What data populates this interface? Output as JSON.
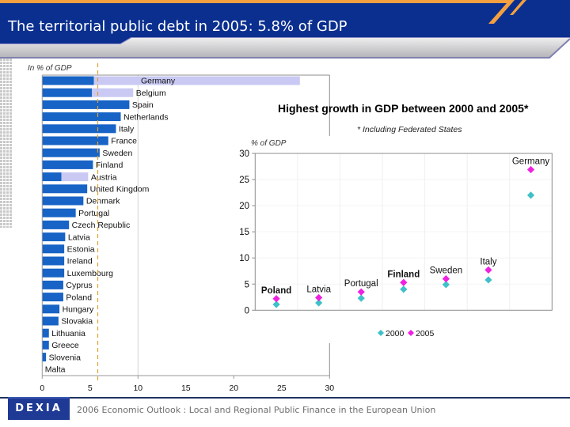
{
  "header": {
    "title": "The territorial public debt in 2005: 5.8% of GDP"
  },
  "colors": {
    "header_navy": "#0a2f8f",
    "header_orange": "#f4a040",
    "logo_blue": "#1e3a94"
  },
  "chart_data": [
    {
      "type": "bar",
      "orientation": "horizontal",
      "stacked": true,
      "unit_label": "In % of GDP",
      "categories": [
        "Germany",
        "Belgium",
        "Spain",
        "Netherlands",
        "Italy",
        "France",
        "Sweden",
        "Finland",
        "Austria",
        "United Kingdom",
        "Denmark",
        "Portugal",
        "Czech Republic",
        "Latvia",
        "Estonia",
        "Ireland",
        "Luxembourg",
        "Cyprus",
        "Poland",
        "Hungary",
        "Slovakia",
        "Lithuania",
        "Greece",
        "Slovenia",
        "Malta"
      ],
      "series": [
        {
          "name": "Territorial public debt",
          "color": "#1763c6",
          "values": [
            5.4,
            5.2,
            9.1,
            8.2,
            7.7,
            6.9,
            6.0,
            5.3,
            2.0,
            4.7,
            4.3,
            3.5,
            2.8,
            2.4,
            2.3,
            2.3,
            2.3,
            2.2,
            2.2,
            1.8,
            1.7,
            0.7,
            0.7,
            0.4,
            0.0
          ]
        },
        {
          "name": "Federated States",
          "color": "#c9c9f4",
          "values": [
            21.5,
            4.3,
            0,
            0,
            0,
            0,
            0,
            0,
            2.8,
            0,
            0,
            0,
            0,
            0,
            0,
            0,
            0,
            0,
            0,
            0,
            0,
            0,
            0,
            0,
            0
          ]
        }
      ],
      "reference_line": {
        "value": 5.8,
        "color": "#e0a030",
        "style": "dashed"
      },
      "xlim": [
        0,
        30
      ],
      "xticks": [
        0,
        5,
        10,
        15,
        20,
        25,
        30
      ],
      "x_gridlines": [
        10
      ],
      "xlabel": "",
      "ylabel": ""
    },
    {
      "type": "scatter",
      "title": "Highest growth in GDP between 2000 and 2005*",
      "subtitle": "* Including Federated States",
      "ylabel": "% of GDP",
      "categories": [
        "Poland",
        "Latvia",
        "Portugal",
        "Finland",
        "Sweden",
        "Italy",
        "Germany"
      ],
      "series": [
        {
          "name": "2000",
          "color": "#40c0c8",
          "values": [
            1.1,
            1.4,
            2.3,
            4.0,
            4.9,
            5.8,
            22.0
          ]
        },
        {
          "name": "2005",
          "color": "#f020e0",
          "values": [
            2.2,
            2.4,
            3.5,
            5.3,
            6.0,
            7.7,
            26.9
          ]
        }
      ],
      "ylim": [
        0,
        30
      ],
      "yticks": [
        0,
        5,
        10,
        15,
        20,
        25,
        30
      ],
      "grid": true,
      "legend": "bottom"
    }
  ],
  "footer": {
    "logo": "DEXIA",
    "text": "2006 Economic Outlook : Local and Regional Public Finance in the European Union"
  }
}
